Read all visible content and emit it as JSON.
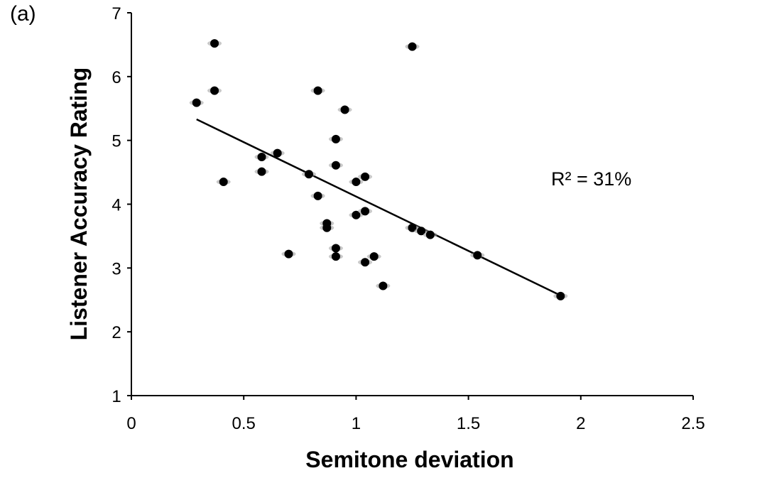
{
  "panel_label": "(a)",
  "chart_data": {
    "type": "scatter",
    "xlabel": "Semitone deviation",
    "ylabel": "Listener Accuracy Rating",
    "xlim": [
      0,
      2.5
    ],
    "ylim": [
      1,
      7
    ],
    "x_ticks": [
      0,
      0.5,
      1,
      1.5,
      2,
      2.5
    ],
    "x_tick_labels": [
      "0",
      "0.5",
      "1",
      "1.5",
      "2",
      "2.5"
    ],
    "y_ticks": [
      1,
      2,
      3,
      4,
      5,
      6,
      7
    ],
    "y_tick_labels": [
      "1",
      "2",
      "3",
      "4",
      "5",
      "6",
      "7"
    ],
    "grid": false,
    "annotation": "R² = 31%",
    "point_color": "#000000",
    "points": [
      {
        "x": 0.29,
        "y": 5.59
      },
      {
        "x": 0.37,
        "y": 6.52
      },
      {
        "x": 0.37,
        "y": 5.78
      },
      {
        "x": 0.41,
        "y": 4.35
      },
      {
        "x": 0.58,
        "y": 4.74
      },
      {
        "x": 0.58,
        "y": 4.51
      },
      {
        "x": 0.65,
        "y": 4.8
      },
      {
        "x": 0.7,
        "y": 3.22
      },
      {
        "x": 0.79,
        "y": 4.47
      },
      {
        "x": 0.83,
        "y": 5.78
      },
      {
        "x": 0.83,
        "y": 4.13
      },
      {
        "x": 0.87,
        "y": 3.7
      },
      {
        "x": 0.87,
        "y": 3.63
      },
      {
        "x": 0.91,
        "y": 5.02
      },
      {
        "x": 0.91,
        "y": 4.61
      },
      {
        "x": 0.91,
        "y": 3.31
      },
      {
        "x": 0.91,
        "y": 3.18
      },
      {
        "x": 0.95,
        "y": 5.48
      },
      {
        "x": 1.0,
        "y": 4.35
      },
      {
        "x": 1.0,
        "y": 3.83
      },
      {
        "x": 1.04,
        "y": 4.43
      },
      {
        "x": 1.04,
        "y": 3.89
      },
      {
        "x": 1.04,
        "y": 3.09
      },
      {
        "x": 1.08,
        "y": 3.18
      },
      {
        "x": 1.12,
        "y": 2.72
      },
      {
        "x": 1.25,
        "y": 6.47
      },
      {
        "x": 1.25,
        "y": 3.63
      },
      {
        "x": 1.29,
        "y": 3.58
      },
      {
        "x": 1.33,
        "y": 3.52
      },
      {
        "x": 1.54,
        "y": 3.2
      },
      {
        "x": 1.91,
        "y": 2.56
      }
    ],
    "trendline": {
      "x": [
        0.29,
        1.91
      ],
      "y": [
        5.33,
        2.57
      ]
    }
  }
}
